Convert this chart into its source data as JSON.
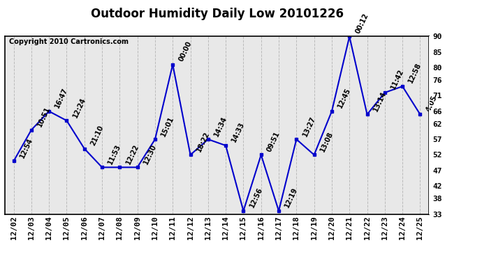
{
  "title": "Outdoor Humidity Daily Low 20101226",
  "copyright": "Copyright 2010 Cartronics.com",
  "x_labels": [
    "12/02",
    "12/03",
    "12/04",
    "12/05",
    "12/06",
    "12/07",
    "12/08",
    "12/09",
    "12/10",
    "12/11",
    "12/12",
    "12/13",
    "12/14",
    "12/15",
    "12/16",
    "12/17",
    "12/18",
    "12/19",
    "12/20",
    "12/21",
    "12/22",
    "12/23",
    "12/24",
    "12/25"
  ],
  "y_values": [
    50,
    60,
    66,
    63,
    54,
    48,
    48,
    48,
    57,
    81,
    52,
    57,
    55,
    34,
    52,
    34,
    57,
    52,
    66,
    90,
    65,
    72,
    74,
    65
  ],
  "point_labels": [
    "12:54",
    "10:51",
    "16:47",
    "12:24",
    "21:10",
    "11:53",
    "12:22",
    "12:30",
    "15:01",
    "00:00",
    "18:22",
    "14:34",
    "14:33",
    "12:56",
    "09:51",
    "12:19",
    "13:27",
    "13:08",
    "12:45",
    "00:12",
    "13:14",
    "11:42",
    "12:58",
    "4:05"
  ],
  "ylim": [
    33,
    90
  ],
  "yticks": [
    33,
    38,
    42,
    47,
    52,
    57,
    62,
    66,
    71,
    76,
    80,
    85,
    90
  ],
  "line_color": "#0000cc",
  "marker_color": "#0000cc",
  "grid_color": "#bbbbbb",
  "bg_color": "#e8e8e8",
  "title_fontsize": 12,
  "label_fontsize": 7,
  "tick_fontsize": 8,
  "copyright_fontsize": 7
}
